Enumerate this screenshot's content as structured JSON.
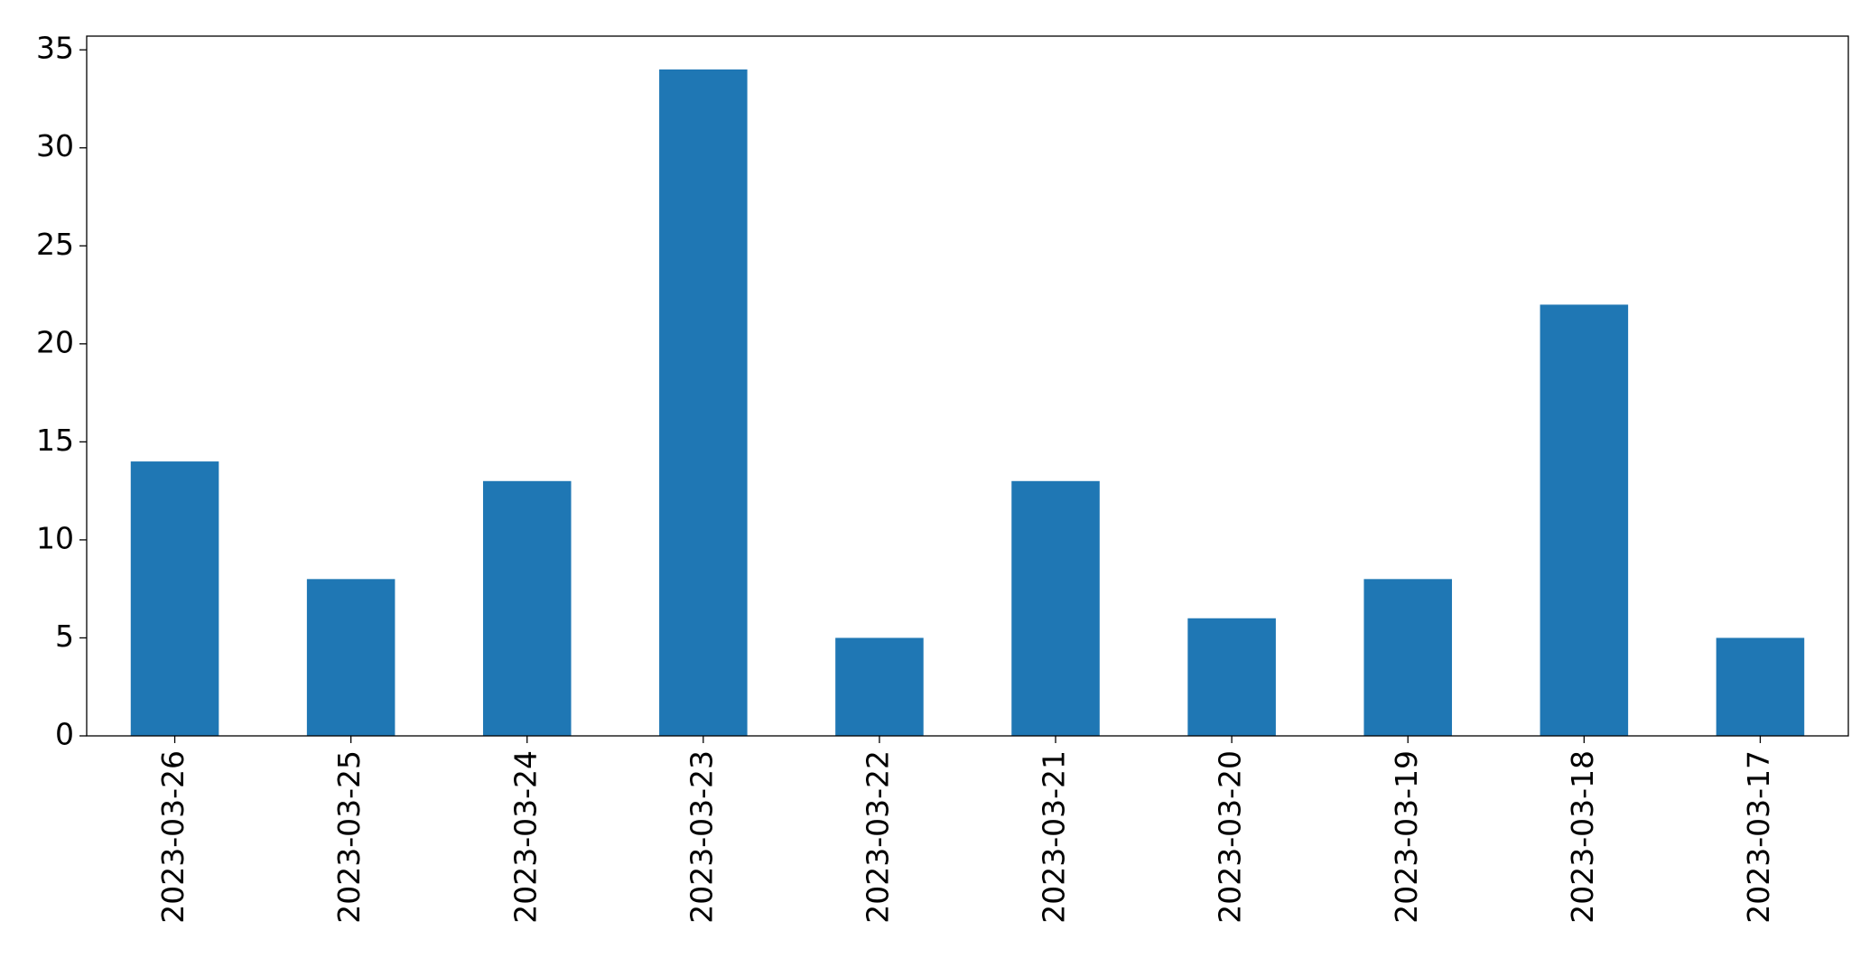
{
  "chart_data": {
    "type": "bar",
    "categories": [
      "2023-03-26",
      "2023-03-25",
      "2023-03-24",
      "2023-03-23",
      "2023-03-22",
      "2023-03-21",
      "2023-03-20",
      "2023-03-19",
      "2023-03-18",
      "2023-03-17"
    ],
    "values": [
      14,
      8,
      13,
      34,
      5,
      13,
      6,
      8,
      22,
      5
    ],
    "color": "#1f77b4",
    "ylim": [
      0,
      35.7
    ],
    "yticks": [
      0,
      5,
      10,
      15,
      20,
      25,
      30,
      35
    ],
    "grid": false
  }
}
